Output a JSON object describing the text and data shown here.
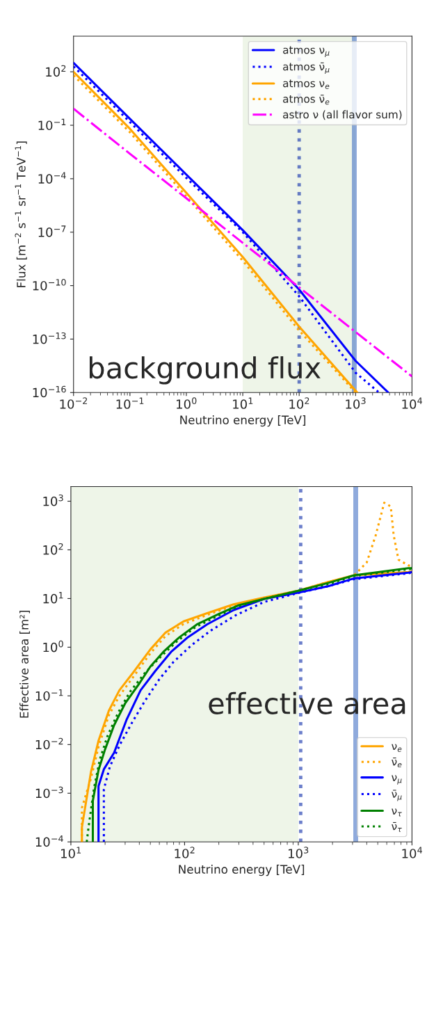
{
  "chart_data": [
    {
      "type": "line",
      "xlabel": "Neutrino energy [TeV]",
      "ylabel": "Flux [m$^{−2}$ s$^{−1}$ sr$^{−1}$ TeV$^{−1}$]",
      "log": "xy",
      "xlim": [
        0.01,
        10000
      ],
      "ylim": [
        1e-16,
        10000
      ],
      "xticks": [
        {
          "value": 0.01,
          "label": "10$^{−2}$"
        },
        {
          "value": 0.1,
          "label": "10$^{−1}$"
        },
        {
          "value": 1,
          "label": "10$^{0}$"
        },
        {
          "value": 10,
          "label": "10$^{1}$"
        },
        {
          "value": 100,
          "label": "10$^{2}$"
        },
        {
          "value": 1000,
          "label": "10$^{3}$"
        },
        {
          "value": 10000,
          "label": "10$^{4}$"
        }
      ],
      "yticks": [
        {
          "value": 1e-16,
          "label": "10$^{−16}$"
        },
        {
          "value": 1e-13,
          "label": "10$^{−13}$"
        },
        {
          "value": 1e-10,
          "label": "10$^{−10}$"
        },
        {
          "value": 1e-07,
          "label": "10$^{−7}$"
        },
        {
          "value": 0.0001,
          "label": "10$^{−4}$"
        },
        {
          "value": 0.1,
          "label": "10$^{−1}$"
        },
        {
          "value": 100,
          "label": "10$^{2}$"
        }
      ],
      "legend": "top right",
      "grid": false,
      "series": [
        {
          "name": "atmos ν$_{μ}$",
          "color": "#0000ff",
          "line_style": "solid",
          "x": [
            0.01,
            0.1,
            1,
            10,
            100,
            1000,
            3800
          ],
          "values": [
            316,
            0.23,
            0.00017,
            1.3e-07,
            6e-11,
            6e-15,
            1e-16
          ]
        },
        {
          "name": "atmos ν̄$_{μ}$",
          "color": "#0000ff",
          "line_style": "dotted",
          "x": [
            0.01,
            0.1,
            1,
            10,
            100,
            1000,
            2600
          ],
          "values": [
            200,
            0.15,
            0.00011,
            1e-07,
            2.5e-11,
            1.3e-15,
            1e-16
          ]
        },
        {
          "name": "atmos ν$_{e}$",
          "color": "#ffa500",
          "line_style": "solid",
          "x": [
            0.01,
            0.1,
            1,
            10,
            100,
            1070
          ],
          "values": [
            100,
            0.063,
            1.6e-05,
            4e-09,
            5e-13,
            1e-16
          ]
        },
        {
          "name": "atmos ν̄$_{e}$",
          "color": "#ffa500",
          "line_style": "dotted",
          "x": [
            0.01,
            0.1,
            1,
            10,
            100,
            1000
          ],
          "values": [
            63,
            0.04,
            1e-05,
            2.5e-09,
            3e-13,
            1e-16
          ]
        },
        {
          "name": "astro ν (all flavor sum)",
          "color": "#ff00ff",
          "line_style": "dashdot",
          "x": [
            0.01,
            0.1,
            1,
            10,
            100,
            1000,
            10000
          ],
          "values": [
            0.85,
            0.0025,
            8e-06,
            2.5e-08,
            8e-11,
            2.5e-13,
            8e-16
          ]
        }
      ],
      "bands": [
        {
          "axis": "x",
          "from": 10,
          "to": 1000,
          "color": "#eef5e8"
        }
      ],
      "ref_lines": [
        {
          "axis": "x",
          "value": 100,
          "color": "#0a2aa8",
          "line_style": "dotted"
        },
        {
          "axis": "x",
          "value": 950,
          "color": "#4472c4",
          "line_style": "solid"
        }
      ],
      "annotations": [
        "background flux"
      ]
    },
    {
      "type": "line",
      "xlabel": "Neutrino energy [TeV]",
      "ylabel": "Effective area [m²]",
      "log": "xy",
      "xlim": [
        10,
        10000
      ],
      "ylim": [
        0.0001,
        2000
      ],
      "xticks": [
        {
          "value": 10,
          "label": "10$^{1}$"
        },
        {
          "value": 100,
          "label": "10$^{2}$"
        },
        {
          "value": 1000,
          "label": "10$^{3}$"
        },
        {
          "value": 10000,
          "label": "10$^{4}$"
        }
      ],
      "yticks": [
        {
          "value": 0.0001,
          "label": "10$^{−4}$"
        },
        {
          "value": 0.001,
          "label": "10$^{−3}$"
        },
        {
          "value": 0.01,
          "label": "10$^{−2}$"
        },
        {
          "value": 0.1,
          "label": "10$^{−1}$"
        },
        {
          "value": 1,
          "label": "10$^{0}$"
        },
        {
          "value": 10,
          "label": "10$^{1}$"
        },
        {
          "value": 100,
          "label": "10$^{2}$"
        },
        {
          "value": 1000,
          "label": "10$^{3}$"
        }
      ],
      "legend": "bottom right",
      "grid": false,
      "series": [
        {
          "name": "ν$_{e}$",
          "color": "#ffa500",
          "line_style": "solid",
          "x": [
            12.5,
            12.5,
            15,
            17.5,
            21.6,
            26.7,
            36,
            50,
            68,
            98,
            158,
            270,
            500,
            1000,
            1850,
            3100,
            9300,
            10000
          ],
          "values": [
            0.0001,
            0.0002,
            0.0027,
            0.012,
            0.05,
            0.13,
            0.32,
            0.9,
            2.0,
            3.4,
            5.0,
            7.6,
            10.5,
            14.5,
            22,
            30,
            35,
            36
          ]
        },
        {
          "name": "ν̄$_{e}$",
          "color": "#ffa500",
          "line_style": "dotted",
          "x": [
            12.5,
            12.5,
            15,
            17.5,
            21.6,
            26.7,
            36,
            50,
            68,
            98,
            158,
            270,
            500,
            1000,
            1850,
            3100,
            4000,
            4800,
            5700,
            6500,
            6900,
            7600,
            9300,
            10000
          ],
          "values": [
            0.0001,
            0.0005,
            0.002,
            0.009,
            0.04,
            0.1,
            0.26,
            0.75,
            1.7,
            3.0,
            4.6,
            7.2,
            10.2,
            14.5,
            22,
            30,
            55,
            200,
            930,
            780,
            200,
            63,
            48,
            46
          ]
        },
        {
          "name": "ν$_{μ}$",
          "color": "#0000ff",
          "line_style": "solid",
          "x": [
            17.5,
            17.5,
            19.5,
            24,
            31,
            41,
            55,
            76,
            105,
            158,
            270,
            500,
            1000,
            1850,
            3100,
            9300,
            10000
          ],
          "values": [
            0.0001,
            0.0014,
            0.0031,
            0.0068,
            0.033,
            0.13,
            0.32,
            0.8,
            1.55,
            2.95,
            5.8,
            9.8,
            13.2,
            18,
            26,
            34,
            35
          ]
        },
        {
          "name": "ν̄$_{μ}$",
          "color": "#0000ff",
          "line_style": "dotted",
          "x": [
            19.5,
            19.5,
            22,
            27,
            35,
            45,
            60,
            80,
            115,
            170,
            280,
            500,
            1000,
            1850,
            3100,
            9300,
            10000
          ],
          "values": [
            0.0001,
            0.0012,
            0.0035,
            0.01,
            0.03,
            0.08,
            0.22,
            0.5,
            1.1,
            2.2,
            4.5,
            8.5,
            13.0,
            18,
            25,
            33,
            34
          ]
        },
        {
          "name": "ν$_{τ}$",
          "color": "#008000",
          "line_style": "solid",
          "x": [
            15.6,
            15.6,
            17.5,
            20,
            24,
            30,
            40,
            50,
            65,
            90,
            130,
            200,
            300,
            500,
            1000,
            1850,
            3100,
            9300,
            10000
          ],
          "values": [
            0.0001,
            0.0007,
            0.003,
            0.008,
            0.025,
            0.07,
            0.18,
            0.4,
            0.8,
            1.6,
            3.0,
            4.8,
            7.3,
            9.8,
            14.5,
            21,
            30,
            42,
            42
          ]
        },
        {
          "name": "ν̄$_{τ}$",
          "color": "#008000",
          "line_style": "dotted",
          "x": [
            13.8,
            14.3,
            16,
            18,
            21,
            26,
            33,
            45,
            60,
            85,
            125,
            200,
            300,
            500,
            1000,
            1850,
            3100,
            9300,
            10000
          ],
          "values": [
            0.0001,
            0.0002,
            0.0013,
            0.005,
            0.015,
            0.045,
            0.12,
            0.3,
            0.6,
            1.3,
            2.6,
            4.5,
            7.0,
            9.8,
            14.5,
            20,
            29,
            40,
            41
          ]
        }
      ],
      "bands": [
        {
          "axis": "x",
          "from": 10,
          "to": 1000,
          "color": "#eef5e8"
        }
      ],
      "ref_lines": [
        {
          "axis": "x",
          "value": 1050,
          "color": "#0a2aa8",
          "line_style": "dotted"
        },
        {
          "axis": "x",
          "value": 3200,
          "color": "#4472c4",
          "line_style": "solid"
        }
      ],
      "annotations": [
        "effective area"
      ]
    }
  ]
}
